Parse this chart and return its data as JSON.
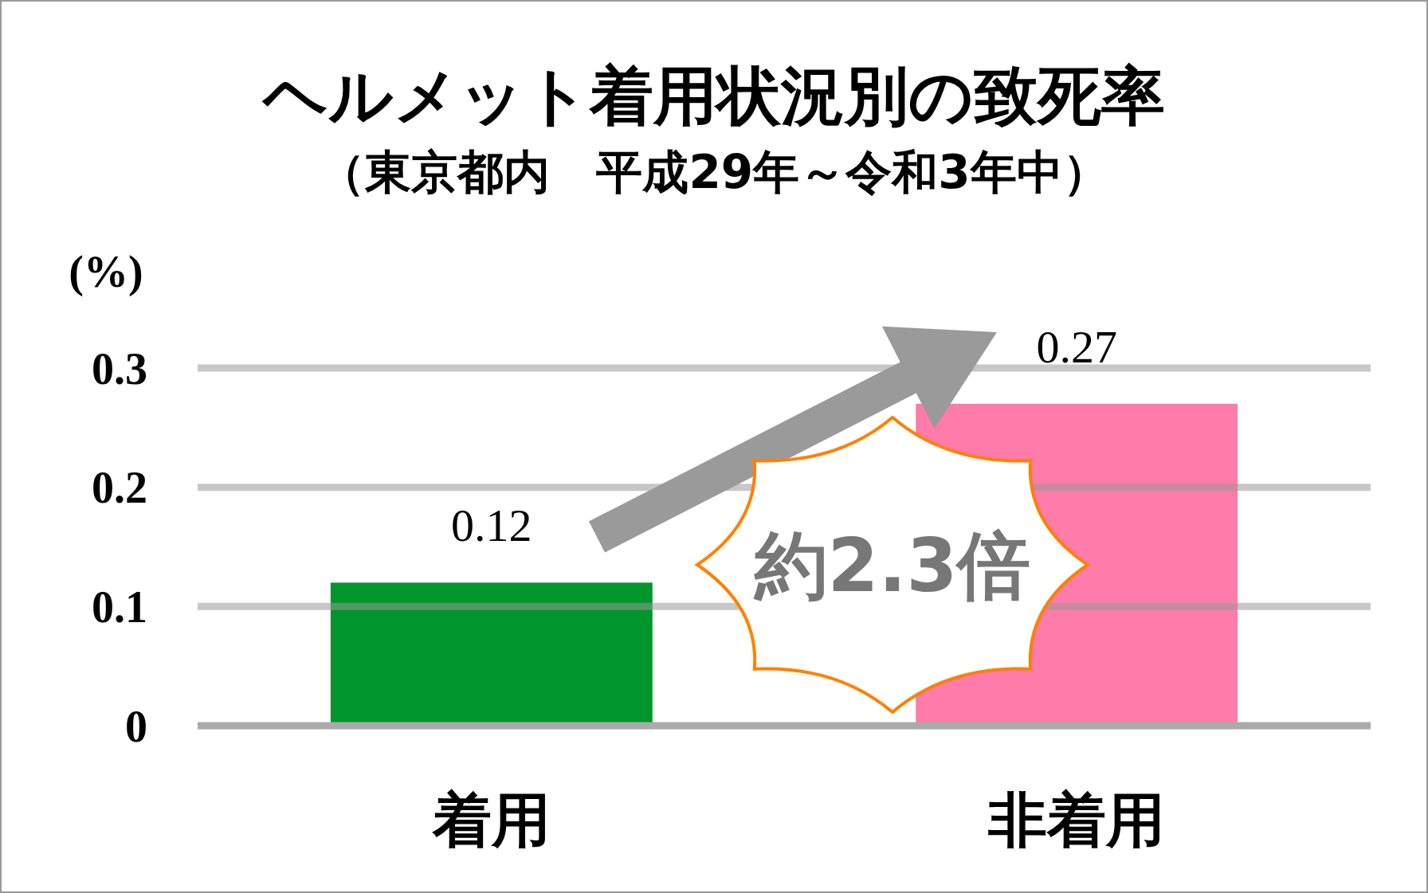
{
  "chart_data": {
    "type": "bar",
    "title": "ヘルメット着用状況別の致死率",
    "subtitle": "（東京都内　平成29年～令和3年中）",
    "ylabel": "(%)",
    "categories": [
      "着用",
      "非着用"
    ],
    "values": [
      0.12,
      0.27
    ],
    "colors": [
      "#00962d",
      "#ff7ba9"
    ],
    "ylim": [
      0,
      0.3
    ],
    "yticks": [
      0,
      0.1,
      0.2,
      0.3
    ],
    "grid": "y",
    "data_labels": true,
    "annotations": [
      "約2.3倍"
    ]
  }
}
